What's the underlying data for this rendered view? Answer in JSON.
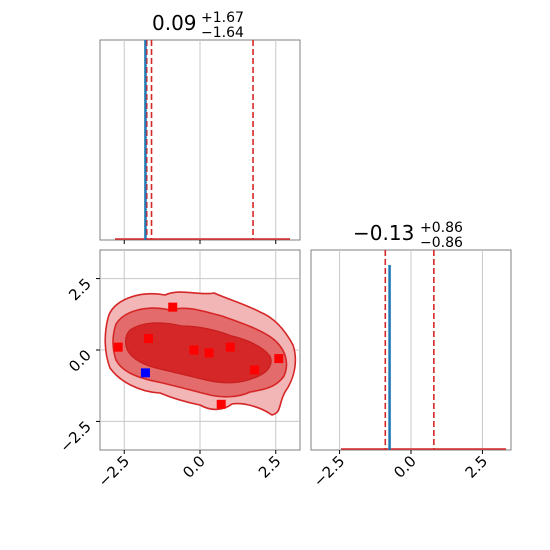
{
  "chart_data": [
    {
      "type": "line",
      "panel": "marginal-param-1",
      "title": {
        "median": "0.09",
        "plus": "+1.67",
        "minus": "−1.64"
      },
      "xlim": [
        -3.3,
        3.3
      ],
      "xticks": [
        -2.5,
        0.0,
        2.5
      ],
      "grid": true,
      "true_value": -1.8,
      "quantile_lines": [
        -1.6,
        1.75
      ],
      "colors": {
        "true": "#1f77b4",
        "quantile": "#d62728",
        "hist": "#d62728"
      }
    },
    {
      "type": "line",
      "panel": "marginal-param-2",
      "title": {
        "median": "−0.13",
        "plus": "+0.86",
        "minus": "−0.86"
      },
      "xlim": [
        -3.5,
        3.5
      ],
      "xticks": [
        -2.5,
        0.0,
        2.5
      ],
      "xtick_labels": [
        "−2.5",
        "0.0",
        "2.5"
      ],
      "grid": true,
      "true_value": -0.75,
      "quantile_lines": [
        -0.9,
        0.8
      ],
      "colors": {
        "true": "#1f77b4",
        "quantile": "#d62728",
        "hist": "#d62728"
      }
    },
    {
      "type": "scatter",
      "panel": "joint-2d",
      "xlim": [
        -3.3,
        3.3
      ],
      "ylim": [
        -3.5,
        3.5
      ],
      "xticks": [
        -2.5,
        0.0,
        2.5
      ],
      "xtick_labels": [
        "−2.5",
        "0.0",
        "2.5"
      ],
      "yticks": [
        -2.5,
        0.0,
        2.5
      ],
      "ytick_labels": [
        "−2.5",
        "0.0",
        "2.5"
      ],
      "grid": true,
      "red_points": [
        {
          "x": -0.9,
          "y": 1.5
        },
        {
          "x": -1.7,
          "y": 0.4
        },
        {
          "x": -2.7,
          "y": 0.1
        },
        {
          "x": -0.2,
          "y": 0.0
        },
        {
          "x": 0.3,
          "y": -0.1
        },
        {
          "x": 1.0,
          "y": 0.1
        },
        {
          "x": 2.6,
          "y": -0.3
        },
        {
          "x": 1.8,
          "y": -0.7
        },
        {
          "x": 0.7,
          "y": -1.9
        }
      ],
      "blue_point": {
        "x": -1.8,
        "y": -0.8
      },
      "colors": {
        "contour": "#d62728",
        "fill_light": "#f0a0a0",
        "fill_mid": "#e06060",
        "fill_dark": "#d62728",
        "blue": "#0000ff",
        "red": "#ff0000"
      }
    }
  ]
}
